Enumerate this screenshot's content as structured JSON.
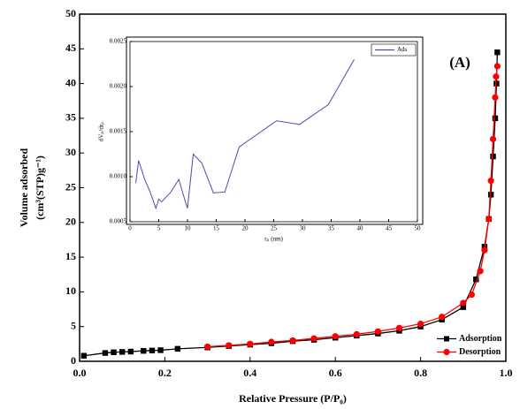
{
  "chart_data": [
    {
      "type": "line",
      "xlabel": "Relative Pressure (P/P₀)",
      "ylabel": [
        "Volume adsorbed",
        "(cm³(STP)g⁻¹)"
      ],
      "annotation": "(A)",
      "xlim": [
        0,
        1
      ],
      "xticks": [
        {
          "value": 0,
          "label": "0.0"
        },
        0.2,
        0.4,
        0.6,
        0.8,
        {
          "value": 1,
          "label": "1.0"
        }
      ],
      "ylim": [
        0,
        50
      ],
      "yticks": [
        0,
        5,
        10,
        15,
        20,
        25,
        30,
        35,
        40,
        45,
        50
      ],
      "legend": "lower right",
      "series": [
        {
          "name": "Adsorption",
          "color": "#000000",
          "marker": "square",
          "x": [
            0.01,
            0.06,
            0.08,
            0.1,
            0.12,
            0.15,
            0.17,
            0.19,
            0.23,
            0.3,
            0.35,
            0.4,
            0.45,
            0.5,
            0.55,
            0.6,
            0.65,
            0.7,
            0.75,
            0.8,
            0.85,
            0.9,
            0.93,
            0.95,
            0.96,
            0.965,
            0.97,
            0.975,
            0.978,
            0.98
          ],
          "values": [
            0.8,
            1.2,
            1.3,
            1.35,
            1.4,
            1.5,
            1.55,
            1.6,
            1.8,
            2.0,
            2.2,
            2.4,
            2.6,
            2.9,
            3.1,
            3.4,
            3.7,
            4.0,
            4.4,
            5.0,
            6.0,
            7.8,
            11.8,
            16.5,
            20.5,
            24,
            29.5,
            35,
            40,
            44.5
          ]
        },
        {
          "name": "Desorption",
          "color": "#ff0000",
          "marker": "circle",
          "x": [
            0.3,
            0.35,
            0.4,
            0.45,
            0.5,
            0.55,
            0.6,
            0.65,
            0.7,
            0.75,
            0.8,
            0.85,
            0.9,
            0.92,
            0.94,
            0.95,
            0.96,
            0.965,
            0.97,
            0.975,
            0.977,
            0.98
          ],
          "values": [
            2.1,
            2.3,
            2.5,
            2.8,
            3.0,
            3.3,
            3.6,
            3.9,
            4.3,
            4.8,
            5.4,
            6.4,
            8.4,
            9.6,
            13,
            16,
            20.5,
            26,
            32,
            38,
            41,
            42.5
          ]
        }
      ]
    },
    {
      "type": "line",
      "xlabel": "rₚ (nm)",
      "ylabel": [
        "dVₚ/drₚ"
      ],
      "xlim": [
        0,
        50
      ],
      "xticks": [
        0,
        5,
        10,
        15,
        20,
        25,
        30,
        35,
        40,
        45,
        50
      ],
      "ylim": [
        0.0005,
        0.0025
      ],
      "yticks": [
        0.0005,
        {
          "value": 0.001,
          "label": "0.0010"
        },
        0.0015,
        {
          "value": 0.002,
          "label": "0.0020"
        },
        0.0025
      ],
      "legend": "upper right",
      "series": [
        {
          "name": "Ads",
          "color": "#4b4bb4",
          "marker": "none",
          "x": [
            1,
            1.5,
            2.5,
            3.5,
            4.5,
            5,
            5.5,
            6.5,
            7,
            8.5,
            9.5,
            10,
            11,
            12.5,
            14.5,
            16.5,
            19,
            25.5,
            29.5,
            34.5,
            39
          ],
          "values": [
            0.00093,
            0.00118,
            0.00098,
            0.00083,
            0.00065,
            0.00075,
            0.00072,
            0.00079,
            0.00082,
            0.00097,
            0.00075,
            0.00065,
            0.00125,
            0.00115,
            0.00082,
            0.00083,
            0.00133,
            0.00162,
            0.00158,
            0.0018,
            0.0023
          ]
        }
      ]
    }
  ]
}
